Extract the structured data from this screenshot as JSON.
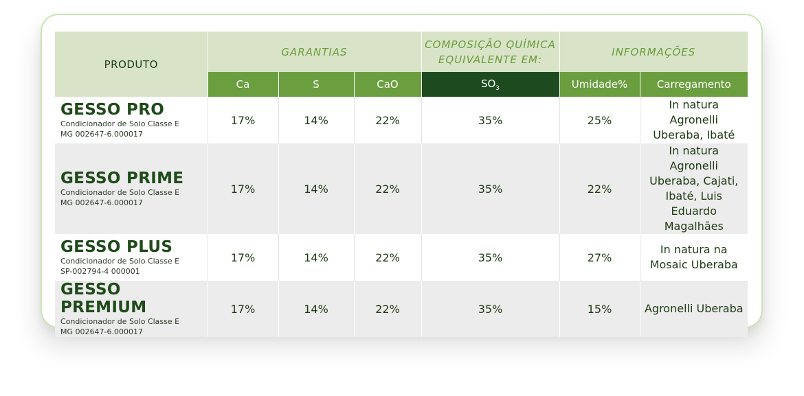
{
  "table": {
    "header": {
      "product": "PRODUTO",
      "groups": {
        "garantias": "GARANTIAS",
        "composicao_line1": "COMPOSIÇÃO QUÍMICA",
        "composicao_line2": "EQUIVALENTE EM:",
        "informacoes": "INFORMAÇÕES"
      },
      "columns": {
        "ca": "Ca",
        "s": "S",
        "cao": "CaO",
        "so3_base": "SO",
        "so3_sub": "3",
        "umidade": "Umidade%",
        "carregamento": "Carregamento"
      }
    },
    "rows": [
      {
        "name": "GESSO PRO",
        "desc": "Condicionador de Solo Classe E",
        "reg": "MG 002647-6.000017",
        "ca": "17%",
        "s": "14%",
        "cao": "22%",
        "so3": "35%",
        "umidade": "25%",
        "carregamento": "In natura Agronelli Uberaba, Ibaté"
      },
      {
        "name": "GESSO PRIME",
        "desc": "Condicionador de Solo Classe E",
        "reg": "MG 002647-6.000017",
        "ca": "17%",
        "s": "14%",
        "cao": "22%",
        "so3": "35%",
        "umidade": "22%",
        "carregamento": "In natura Agronelli Uberaba, Cajati, Ibaté, Luis Eduardo Magalhães"
      },
      {
        "name": "GESSO PLUS",
        "desc": "Condicionador de Solo Classe E",
        "reg": "SP-002794-4 000001",
        "ca": "17%",
        "s": "14%",
        "cao": "22%",
        "so3": "35%",
        "umidade": "27%",
        "carregamento": "In natura na Mosaic Uberaba"
      },
      {
        "name": "GESSO PREMIUM",
        "desc": "Condicionador de Solo Classe E",
        "reg": "MG 002647-6.000017",
        "ca": "17%",
        "s": "14%",
        "cao": "22%",
        "so3": "35%",
        "umidade": "15%",
        "carregamento": "Agronelli Uberaba"
      }
    ]
  },
  "colors": {
    "header_light": "#d8e3c8",
    "header_green": "#6a9e3f",
    "header_dark": "#1d4b1f",
    "text_dark_green": "#1f4a1a",
    "card_border": "#c9e4b3"
  }
}
